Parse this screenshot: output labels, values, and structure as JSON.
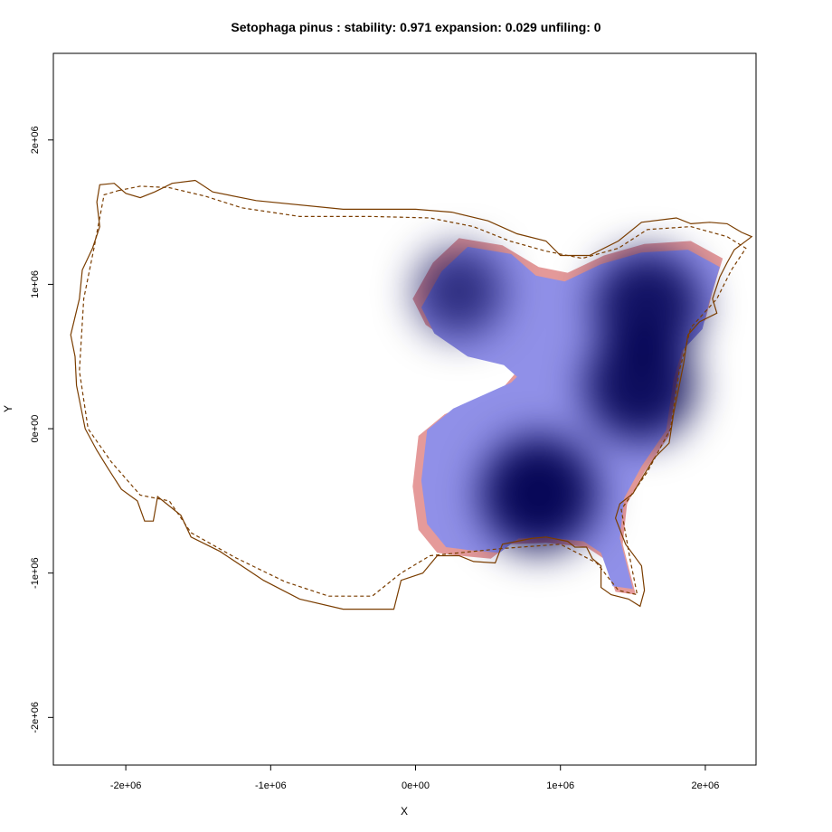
{
  "chart_data": {
    "type": "heatmap",
    "title": "Setophaga pinus : stability: 0.971 expansion: 0.029 unfiling: 0",
    "xlabel": "X",
    "ylabel": "Y",
    "xlim": [
      -2500000,
      2350000
    ],
    "ylim": [
      -2330000,
      2600000
    ],
    "x_ticks": [
      {
        "value": -2000000,
        "label": "-2e+06"
      },
      {
        "value": -1000000,
        "label": "-1e+06"
      },
      {
        "value": 0,
        "label": "0e+00"
      },
      {
        "value": 1000000,
        "label": "1e+06"
      },
      {
        "value": 2000000,
        "label": "2e+06"
      }
    ],
    "y_ticks": [
      {
        "value": -2000000,
        "label": "-2e+06"
      },
      {
        "value": -1000000,
        "label": "-1e+06"
      },
      {
        "value": 0,
        "label": "0e+00"
      },
      {
        "value": 1000000,
        "label": "1e+06"
      },
      {
        "value": 2000000,
        "label": "2e+06"
      }
    ],
    "grid": false,
    "colors": {
      "expansion_band": "#e59a9a",
      "density_low": "#9090e8",
      "density_high": "#000050",
      "outline": "#7a3d00"
    },
    "density_peaks": [
      {
        "x": 300000,
        "y": 950000,
        "strength": 0.45
      },
      {
        "x": 1600000,
        "y": 850000,
        "strength": 0.85
      },
      {
        "x": 1550000,
        "y": 300000,
        "strength": 0.9
      },
      {
        "x": 850000,
        "y": -450000,
        "strength": 1.0
      }
    ],
    "solid_outline": [
      [
        -1520000,
        1720000
      ],
      [
        -1400000,
        1640000
      ],
      [
        -1100000,
        1580000
      ],
      [
        -500000,
        1520000
      ],
      [
        0,
        1520000
      ],
      [
        250000,
        1500000
      ],
      [
        500000,
        1440000
      ],
      [
        700000,
        1350000
      ],
      [
        900000,
        1300000
      ],
      [
        1000000,
        1200000
      ],
      [
        1200000,
        1200000
      ],
      [
        1400000,
        1300000
      ],
      [
        1560000,
        1430000
      ],
      [
        1800000,
        1460000
      ],
      [
        1900000,
        1420000
      ],
      [
        2030000,
        1430000
      ],
      [
        2150000,
        1420000
      ],
      [
        2250000,
        1360000
      ],
      [
        2320000,
        1330000
      ],
      [
        2200000,
        1240000
      ],
      [
        2150000,
        1150000
      ],
      [
        2100000,
        1050000
      ],
      [
        2050000,
        900000
      ],
      [
        2080000,
        800000
      ],
      [
        1960000,
        740000
      ],
      [
        1880000,
        650000
      ],
      [
        1850000,
        450000
      ],
      [
        1820000,
        300000
      ],
      [
        1780000,
        100000
      ],
      [
        1750000,
        -100000
      ],
      [
        1650000,
        -200000
      ],
      [
        1570000,
        -330000
      ],
      [
        1500000,
        -450000
      ],
      [
        1410000,
        -520000
      ],
      [
        1380000,
        -620000
      ],
      [
        1450000,
        -800000
      ],
      [
        1560000,
        -950000
      ],
      [
        1580000,
        -1120000
      ],
      [
        1550000,
        -1230000
      ],
      [
        1470000,
        -1180000
      ],
      [
        1350000,
        -1150000
      ],
      [
        1280000,
        -1100000
      ],
      [
        1280000,
        -950000
      ],
      [
        1220000,
        -900000
      ],
      [
        1180000,
        -820000
      ],
      [
        1100000,
        -820000
      ],
      [
        1050000,
        -780000
      ],
      [
        900000,
        -750000
      ],
      [
        800000,
        -760000
      ],
      [
        700000,
        -780000
      ],
      [
        600000,
        -800000
      ],
      [
        550000,
        -930000
      ],
      [
        400000,
        -920000
      ],
      [
        300000,
        -880000
      ],
      [
        150000,
        -880000
      ],
      [
        50000,
        -1000000
      ],
      [
        -100000,
        -1050000
      ],
      [
        -150000,
        -1250000
      ],
      [
        -500000,
        -1250000
      ],
      [
        -800000,
        -1180000
      ],
      [
        -1050000,
        -1050000
      ],
      [
        -1350000,
        -850000
      ],
      [
        -1550000,
        -750000
      ],
      [
        -1620000,
        -600000
      ],
      [
        -1780000,
        -470000
      ],
      [
        -1810000,
        -640000
      ],
      [
        -1870000,
        -640000
      ],
      [
        -1920000,
        -500000
      ],
      [
        -2030000,
        -420000
      ],
      [
        -2120000,
        -280000
      ],
      [
        -2200000,
        -150000
      ],
      [
        -2280000,
        0
      ],
      [
        -2340000,
        300000
      ],
      [
        -2350000,
        500000
      ],
      [
        -2380000,
        650000
      ],
      [
        -2320000,
        900000
      ],
      [
        -2300000,
        1100000
      ],
      [
        -2230000,
        1250000
      ],
      [
        -2180000,
        1400000
      ],
      [
        -2200000,
        1570000
      ],
      [
        -2180000,
        1690000
      ],
      [
        -2080000,
        1700000
      ],
      [
        -2000000,
        1630000
      ],
      [
        -1900000,
        1600000
      ],
      [
        -1800000,
        1640000
      ],
      [
        -1680000,
        1700000
      ],
      [
        -1520000,
        1720000
      ]
    ],
    "dashed_outline": [
      [
        -2050000,
        1650000
      ],
      [
        -1900000,
        1680000
      ],
      [
        -1700000,
        1670000
      ],
      [
        -1450000,
        1610000
      ],
      [
        -1200000,
        1530000
      ],
      [
        -800000,
        1470000
      ],
      [
        -300000,
        1470000
      ],
      [
        100000,
        1460000
      ],
      [
        400000,
        1400000
      ],
      [
        650000,
        1300000
      ],
      [
        900000,
        1230000
      ],
      [
        1150000,
        1180000
      ],
      [
        1400000,
        1250000
      ],
      [
        1600000,
        1380000
      ],
      [
        1900000,
        1400000
      ],
      [
        2150000,
        1330000
      ],
      [
        2280000,
        1250000
      ],
      [
        2180000,
        1100000
      ],
      [
        2080000,
        900000
      ],
      [
        1900000,
        700000
      ],
      [
        1820000,
        400000
      ],
      [
        1760000,
        0
      ],
      [
        1600000,
        -300000
      ],
      [
        1420000,
        -560000
      ],
      [
        1480000,
        -900000
      ],
      [
        1530000,
        -1150000
      ],
      [
        1400000,
        -1120000
      ],
      [
        1250000,
        -930000
      ],
      [
        1000000,
        -800000
      ],
      [
        600000,
        -830000
      ],
      [
        100000,
        -880000
      ],
      [
        -100000,
        -1000000
      ],
      [
        -300000,
        -1160000
      ],
      [
        -600000,
        -1160000
      ],
      [
        -900000,
        -1060000
      ],
      [
        -1250000,
        -890000
      ],
      [
        -1550000,
        -720000
      ],
      [
        -1700000,
        -500000
      ],
      [
        -1900000,
        -460000
      ],
      [
        -2100000,
        -230000
      ],
      [
        -2260000,
        0
      ],
      [
        -2320000,
        400000
      ],
      [
        -2290000,
        900000
      ],
      [
        -2220000,
        1250000
      ],
      [
        -2150000,
        1620000
      ],
      [
        -2050000,
        1650000
      ]
    ]
  }
}
